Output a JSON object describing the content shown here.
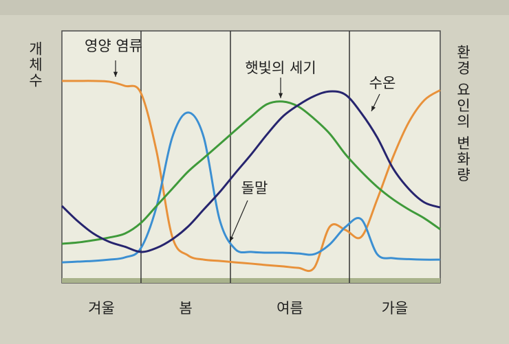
{
  "chart_data": {
    "type": "line",
    "y_label": "개체수",
    "y2_label": "환경 요인의 변화량",
    "categories": [
      "겨울",
      "봄",
      "여름",
      "가을"
    ],
    "x": [
      0,
      1,
      2,
      3,
      4,
      5,
      6,
      7,
      8,
      9,
      10,
      11,
      12,
      13,
      14,
      15,
      16,
      17,
      18,
      19,
      20,
      21,
      22,
      23,
      24
    ],
    "xlim": [
      0,
      24
    ],
    "ylim": [
      0,
      100
    ],
    "series": [
      {
        "name": "영양 염류",
        "color": "#e8913a",
        "values": [
          80.7,
          80.7,
          80.7,
          80.4,
          78.7,
          76,
          52.5,
          18,
          10.5,
          8.8,
          8.3,
          7.7,
          7.2,
          6.6,
          6.1,
          5.5,
          5.5,
          22.1,
          20.7,
          18,
          33,
          50,
          64,
          73,
          77
        ]
      },
      {
        "name": "돌말",
        "color": "#3b8fd2",
        "values": [
          7.7,
          8,
          8.3,
          8.8,
          9.7,
          13.3,
          30,
          58,
          68,
          58,
          25,
          13,
          11.9,
          11.6,
          11.6,
          11.3,
          11,
          15,
          22,
          25,
          11,
          9.4,
          9,
          8.8,
          8.8
        ]
      },
      {
        "name": "햇빛의 세기",
        "color": "#3f9a3a",
        "values": [
          15.2,
          15.7,
          16.6,
          17.7,
          19.3,
          23.5,
          30.4,
          37.3,
          44.2,
          49.7,
          55.2,
          60.8,
          66.3,
          71.3,
          72.4,
          70.4,
          65.5,
          59.4,
          51.1,
          44.2,
          38.1,
          33.1,
          29,
          25.4,
          21
        ]
      },
      {
        "name": "수온",
        "color": "#26246e",
        "values": [
          30.4,
          24.3,
          19.3,
          16,
          14,
          11.9,
          13.5,
          17,
          22.1,
          29,
          35.9,
          43.6,
          51.1,
          59.1,
          66.3,
          71,
          74.6,
          76.5,
          75.1,
          67.7,
          58,
          45.6,
          37.3,
          31.8,
          29.8
        ]
      }
    ]
  }
}
